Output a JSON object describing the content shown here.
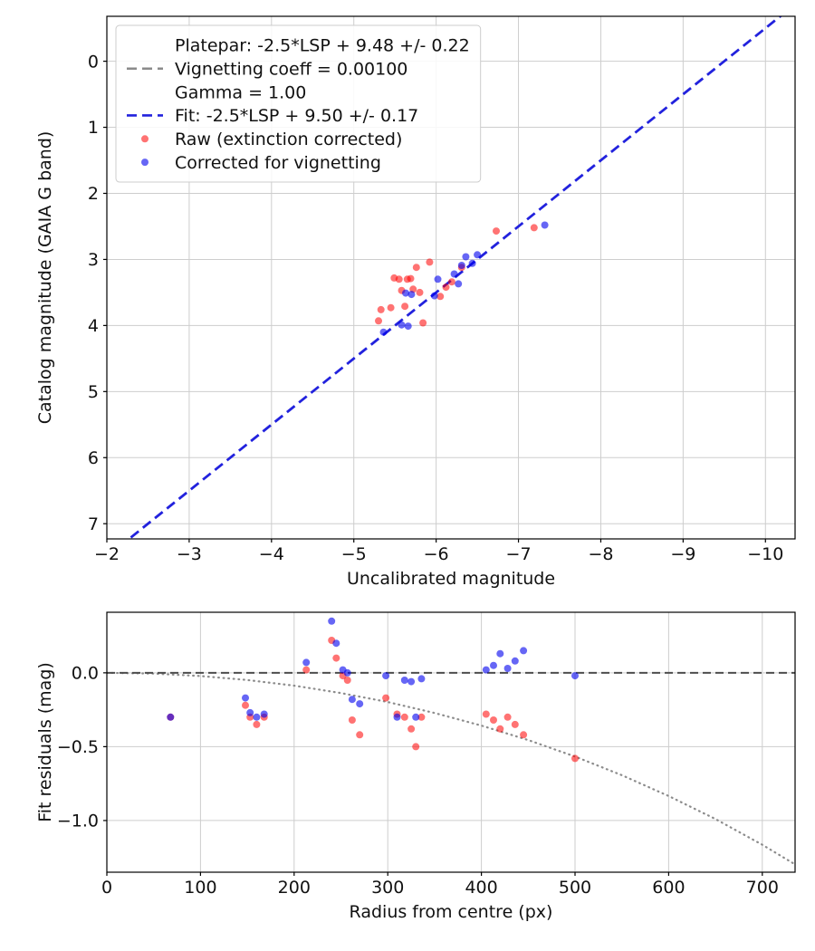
{
  "figure": {
    "background": "#ffffff",
    "text_color": "#111111",
    "grid_color": "#cdcdcd",
    "frame_color": "#000000"
  },
  "chart_data": [
    {
      "type": "scatter",
      "title": "",
      "xlabel": "Uncalibrated magnitude",
      "ylabel": "Catalog magnitude (GAIA G band)",
      "xlim": [
        -2.0,
        -10.36
      ],
      "ylim": [
        7.23,
        -0.68
      ],
      "grid": true,
      "xticks": {
        "values": [
          -2,
          -3,
          -4,
          -5,
          -6,
          -7,
          -8,
          -9,
          -10
        ],
        "labels": [
          "−2",
          "−3",
          "−4",
          "−5",
          "−6",
          "−7",
          "−8",
          "−9",
          "−10"
        ]
      },
      "yticks": {
        "values": [
          0,
          1,
          2,
          3,
          4,
          5,
          6,
          7
        ],
        "labels": [
          "0",
          "1",
          "2",
          "3",
          "4",
          "5",
          "6",
          "7"
        ]
      },
      "lines": [
        {
          "name": "fit-line",
          "slope": 1.0,
          "intercept": 9.5,
          "color": "#2222dd",
          "dash": "11 6",
          "width": 2.8
        }
      ],
      "curves": [],
      "series": [
        {
          "name": "Raw (extinction corrected)",
          "color": "#ff0000",
          "opacity": 0.55,
          "marker_r": 4,
          "points": [
            [
              -5.3,
              3.93
            ],
            [
              -5.33,
              3.76
            ],
            [
              -5.45,
              3.73
            ],
            [
              -5.49,
              3.28
            ],
            [
              -5.55,
              3.3
            ],
            [
              -5.58,
              3.47
            ],
            [
              -5.62,
              3.71
            ],
            [
              -5.65,
              3.3
            ],
            [
              -5.69,
              3.29
            ],
            [
              -5.72,
              3.45
            ],
            [
              -5.76,
              3.12
            ],
            [
              -5.8,
              3.5
            ],
            [
              -5.84,
              3.96
            ],
            [
              -5.92,
              3.04
            ],
            [
              -6.05,
              3.56
            ],
            [
              -6.12,
              3.42
            ],
            [
              -6.19,
              3.34
            ],
            [
              -6.31,
              3.12
            ],
            [
              -6.73,
              2.57
            ],
            [
              -7.19,
              2.52
            ]
          ]
        },
        {
          "name": "Corrected for vignetting",
          "color": "#0000ee",
          "opacity": 0.6,
          "marker_r": 4,
          "points": [
            [
              -5.36,
              4.1
            ],
            [
              -5.58,
              3.99
            ],
            [
              -5.66,
              4.01
            ],
            [
              -5.63,
              3.51
            ],
            [
              -5.7,
              3.53
            ],
            [
              -5.98,
              3.55
            ],
            [
              -6.02,
              3.3
            ],
            [
              -6.22,
              3.22
            ],
            [
              -6.27,
              3.37
            ],
            [
              -6.31,
              3.09
            ],
            [
              -6.36,
              2.96
            ],
            [
              -6.44,
              3.06
            ],
            [
              -6.5,
              2.93
            ],
            [
              -7.32,
              2.48
            ]
          ]
        }
      ],
      "legend": {
        "position": "upper left",
        "entries": [
          {
            "marker": "dash",
            "color": "#8a8a8a",
            "width": 2.6,
            "lines": [
              "Platepar: -2.5*LSP + 9.48 +/- 0.22",
              "Vignetting coeff = 0.00100",
              "Gamma = 1.00"
            ]
          },
          {
            "marker": "dash",
            "color": "#2222dd",
            "width": 2.6,
            "lines": [
              "Fit: -2.5*LSP + 9.50 +/- 0.17"
            ]
          },
          {
            "marker": "dot",
            "color": "#ff0000",
            "opacity": 0.55,
            "lines": [
              "Raw (extinction corrected)"
            ]
          },
          {
            "marker": "dot",
            "color": "#0000ee",
            "opacity": 0.6,
            "lines": [
              "Corrected for vignetting"
            ]
          }
        ]
      }
    },
    {
      "type": "scatter",
      "title": "",
      "xlabel": "Radius from centre (px)",
      "ylabel": "Fit residuals (mag)",
      "xlim": [
        0,
        735
      ],
      "ylim": [
        -1.35,
        0.41
      ],
      "grid": true,
      "xticks": {
        "values": [
          0,
          100,
          200,
          300,
          400,
          500,
          600,
          700
        ],
        "labels": [
          "0",
          "100",
          "200",
          "300",
          "400",
          "500",
          "600",
          "700"
        ]
      },
      "yticks": {
        "values": [
          0.0,
          -0.5,
          -1.0
        ],
        "labels": [
          "0.0",
          "−0.5",
          "−1.0"
        ]
      },
      "lines": [
        {
          "name": "zero-line",
          "slope": 0.0,
          "intercept": 0.0,
          "color": "#4d4d4d",
          "dash": "9 5",
          "width": 2
        }
      ],
      "curves": [
        {
          "name": "vignetting-model",
          "color": "#8c8c8c",
          "dash": "0.8 4.8",
          "width": 2.2,
          "points": [
            [
              0,
              0
            ],
            [
              50,
              -0.005
            ],
            [
              100,
              -0.022
            ],
            [
              150,
              -0.049
            ],
            [
              200,
              -0.087
            ],
            [
              250,
              -0.137
            ],
            [
              300,
              -0.198
            ],
            [
              350,
              -0.272
            ],
            [
              400,
              -0.357
            ],
            [
              450,
              -0.455
            ],
            [
              500,
              -0.567
            ],
            [
              550,
              -0.693
            ],
            [
              600,
              -0.834
            ],
            [
              650,
              -0.99
            ],
            [
              700,
              -1.164
            ],
            [
              735,
              -1.297
            ]
          ]
        }
      ],
      "series": [
        {
          "name": "Raw (extinction corrected)",
          "color": "#ff0000",
          "opacity": 0.55,
          "marker_r": 4,
          "points": [
            [
              68,
              -0.3
            ],
            [
              148,
              -0.22
            ],
            [
              153,
              -0.3
            ],
            [
              160,
              -0.35
            ],
            [
              168,
              -0.3
            ],
            [
              213,
              0.02
            ],
            [
              240,
              0.22
            ],
            [
              245,
              0.1
            ],
            [
              252,
              -0.02
            ],
            [
              257,
              -0.05
            ],
            [
              262,
              -0.32
            ],
            [
              270,
              -0.42
            ],
            [
              298,
              -0.17
            ],
            [
              310,
              -0.28
            ],
            [
              318,
              -0.3
            ],
            [
              325,
              -0.38
            ],
            [
              330,
              -0.5
            ],
            [
              336,
              -0.3
            ],
            [
              405,
              -0.28
            ],
            [
              413,
              -0.32
            ],
            [
              420,
              -0.38
            ],
            [
              428,
              -0.3
            ],
            [
              436,
              -0.35
            ],
            [
              445,
              -0.42
            ],
            [
              500,
              -0.58
            ]
          ]
        },
        {
          "name": "Corrected for vignetting",
          "color": "#0000ee",
          "opacity": 0.6,
          "marker_r": 4,
          "points": [
            [
              68,
              -0.3
            ],
            [
              148,
              -0.17
            ],
            [
              153,
              -0.27
            ],
            [
              160,
              -0.3
            ],
            [
              168,
              -0.28
            ],
            [
              213,
              0.07
            ],
            [
              240,
              0.35
            ],
            [
              245,
              0.2
            ],
            [
              252,
              0.02
            ],
            [
              257,
              0.0
            ],
            [
              262,
              -0.18
            ],
            [
              270,
              -0.21
            ],
            [
              298,
              -0.02
            ],
            [
              310,
              -0.3
            ],
            [
              318,
              -0.05
            ],
            [
              325,
              -0.06
            ],
            [
              330,
              -0.3
            ],
            [
              336,
              -0.04
            ],
            [
              405,
              0.02
            ],
            [
              413,
              0.05
            ],
            [
              420,
              0.13
            ],
            [
              428,
              0.03
            ],
            [
              436,
              0.08
            ],
            [
              445,
              0.15
            ],
            [
              500,
              -0.02
            ]
          ]
        }
      ],
      "legend": null
    }
  ]
}
